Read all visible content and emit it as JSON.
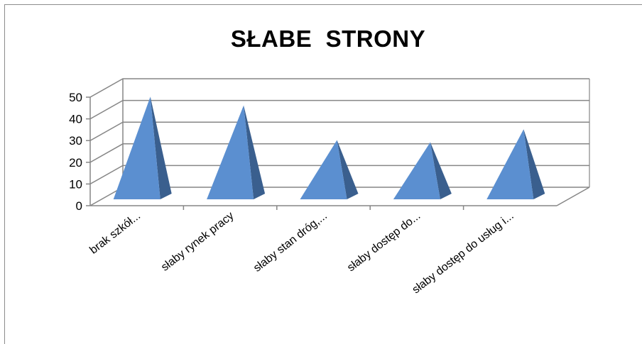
{
  "chart_data": {
    "type": "bar",
    "style": "3d-pyramid",
    "title": "SŁABE  STRONY",
    "categories": [
      "brak szkół...",
      "słaby rynek pracy",
      "słaby stan dróg,...",
      "słaby dostęp do...",
      "słaby dostęp do usług i..."
    ],
    "values": [
      47,
      43,
      27,
      26,
      32
    ],
    "yticks": [
      0,
      10,
      20,
      30,
      40,
      50
    ],
    "ylim": [
      0,
      50
    ],
    "xlabel": "",
    "ylabel": "",
    "grid": true,
    "legend": "none",
    "colors": {
      "pyramid_front": "#5b8fd0",
      "pyramid_side": "#3a5f8e",
      "gridline": "#868686",
      "axis": "#868686"
    }
  }
}
